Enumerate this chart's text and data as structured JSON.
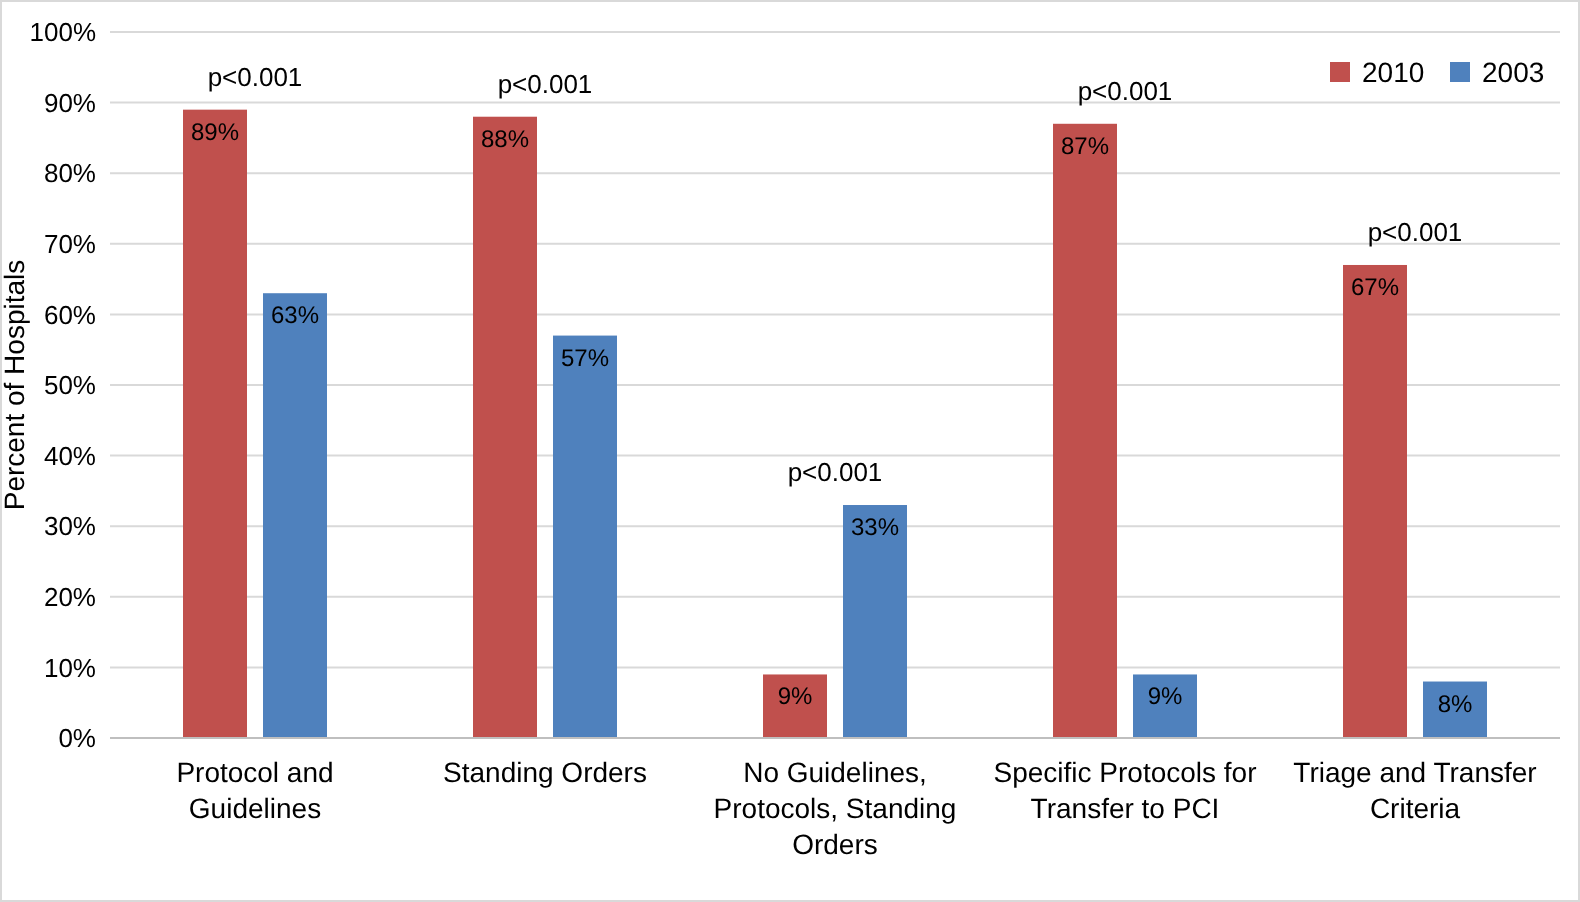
{
  "chart_data": {
    "type": "bar",
    "ylabel": "Percent of Hospitals",
    "categories": [
      "Protocol and Guidelines",
      "Standing Orders",
      "No Guidelines, Protocols, Standing Orders",
      "Specific Protocols for Transfer to PCI",
      "Triage and Transfer Criteria"
    ],
    "series": [
      {
        "name": "2010",
        "color": "#c0504d",
        "values": [
          89,
          88,
          9,
          87,
          67
        ],
        "value_labels": [
          "89%",
          "88%",
          "9%",
          "87%",
          "67%"
        ]
      },
      {
        "name": "2003",
        "color": "#4f81bd",
        "values": [
          63,
          57,
          33,
          9,
          8
        ],
        "value_labels": [
          "63%",
          "57%",
          "33%",
          "9%",
          "8%"
        ]
      }
    ],
    "ylim": [
      0,
      100
    ],
    "yticks": [
      {
        "value": 0,
        "label": "0%"
      },
      {
        "value": 10,
        "label": "10%"
      },
      {
        "value": 20,
        "label": "20%"
      },
      {
        "value": 30,
        "label": "30%"
      },
      {
        "value": 40,
        "label": "40%"
      },
      {
        "value": 50,
        "label": "50%"
      },
      {
        "value": 60,
        "label": "60%"
      },
      {
        "value": 70,
        "label": "70%"
      },
      {
        "value": 80,
        "label": "80%"
      },
      {
        "value": 90,
        "label": "90%"
      },
      {
        "value": 100,
        "label": "100%"
      }
    ],
    "grid": "y",
    "legend": "top right",
    "annotations": [
      {
        "text": "p<0.001",
        "x": "Protocol and Guidelines",
        "y": 89
      },
      {
        "text": "p<0.001",
        "x": "Standing Orders",
        "y": 88
      },
      {
        "text": "p<0.001",
        "x": "No Guidelines, Protocols, Standing Orders",
        "y": 33
      },
      {
        "text": "p<0.001",
        "x": "Specific Protocols for Transfer to PCI",
        "y": 87
      },
      {
        "text": "p<0.001",
        "x": "Triage and Transfer Criteria",
        "y": 67
      }
    ]
  }
}
